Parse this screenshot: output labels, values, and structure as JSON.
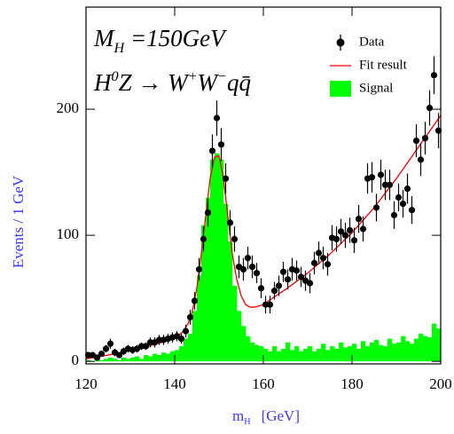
{
  "chart_data": {
    "type": "histogram",
    "xlim": [
      120,
      200
    ],
    "ylim": [
      -2,
      281
    ],
    "xticks": [
      120,
      140,
      160,
      180,
      200
    ],
    "yticks": [
      0,
      100,
      200
    ],
    "ylabel": "Events / 1 GeV",
    "xlabel": [
      {
        "text": "m"
      },
      {
        "text": "H",
        "sub": true
      },
      {
        "text": "[GeV]"
      }
    ],
    "annotations": [
      [
        {
          "text": "M"
        },
        {
          "text": "H",
          "sub": true
        },
        {
          "text": " =150GeV"
        }
      ],
      [
        {
          "text": "H"
        },
        {
          "text": "0",
          "sup": true
        },
        {
          "text": "Z → W"
        },
        {
          "text": "+",
          "sup": true
        },
        {
          "text": "W"
        },
        {
          "text": "−",
          "sup": true
        },
        {
          "text": "qq̄"
        }
      ]
    ],
    "series": [
      {
        "name": "Signal",
        "kind": "bar",
        "color": "#00ff00",
        "bins": [
          120,
          121,
          122,
          123,
          124,
          125,
          126,
          127,
          128,
          129,
          130,
          131,
          132,
          133,
          134,
          135,
          136,
          137,
          138,
          139,
          140,
          141,
          142,
          143,
          144,
          145,
          146,
          147,
          148,
          149,
          150,
          151,
          152,
          153,
          154,
          155,
          156,
          157,
          158,
          159,
          160,
          161,
          162,
          163,
          164,
          165,
          166,
          167,
          168,
          169,
          170,
          171,
          172,
          173,
          174,
          175,
          176,
          177,
          178,
          179,
          180,
          181,
          182,
          183,
          184,
          185,
          186,
          187,
          188,
          189,
          190,
          191,
          192,
          193,
          194,
          195,
          196,
          197,
          198,
          199,
          200
        ],
        "values": [
          1,
          0,
          2,
          1,
          2,
          3,
          2,
          1,
          3,
          2,
          3,
          4,
          2,
          5,
          4,
          6,
          5,
          7,
          6,
          8,
          9,
          12,
          18,
          22,
          40,
          68,
          108,
          130,
          160,
          165,
          160,
          125,
          95,
          60,
          40,
          28,
          20,
          15,
          13,
          12,
          10,
          8,
          12,
          8,
          10,
          15,
          9,
          12,
          8,
          10,
          12,
          8,
          10,
          14,
          9,
          12,
          10,
          15,
          11,
          12,
          14,
          10,
          16,
          12,
          15,
          17,
          13,
          12,
          18,
          14,
          15,
          20,
          16,
          14,
          18,
          22,
          20,
          19,
          30,
          26
        ]
      },
      {
        "name": "Fit result",
        "kind": "line",
        "color": "#ff0000",
        "x": [
          120,
          125,
          130,
          135,
          140,
          142,
          143,
          144,
          145,
          146,
          147,
          148,
          149,
          150,
          151,
          152,
          153,
          154,
          155,
          156,
          157,
          158,
          160,
          162,
          165,
          170,
          175,
          180,
          185,
          190,
          195,
          200
        ],
        "values": [
          2,
          5,
          9,
          13,
          18,
          24,
          30,
          40,
          58,
          85,
          115,
          145,
          162,
          163,
          145,
          115,
          85,
          65,
          52,
          45,
          43,
          43,
          45,
          50,
          57,
          70,
          85,
          102,
          122,
          145,
          170,
          195
        ]
      },
      {
        "name": "Data",
        "kind": "errorbar",
        "color": "#000000",
        "x": [
          120.5,
          121.5,
          122.5,
          123.5,
          124.5,
          125.5,
          126.5,
          127.5,
          128.5,
          129.5,
          130.5,
          131.5,
          132.5,
          133.5,
          134.5,
          135.5,
          136.5,
          137.5,
          138.5,
          139.5,
          140.5,
          141.5,
          142.5,
          143.5,
          144.5,
          145.5,
          146.5,
          147.5,
          148.5,
          149.5,
          150.5,
          151.5,
          152.5,
          153.5,
          154.5,
          155.5,
          156.5,
          157.5,
          158.5,
          159.5,
          160.5,
          161.5,
          162.5,
          163.5,
          164.5,
          165.5,
          166.5,
          167.5,
          168.5,
          169.5,
          170.5,
          171.5,
          172.5,
          173.5,
          174.5,
          175.5,
          176.5,
          177.5,
          178.5,
          179.5,
          180.5,
          181.5,
          182.5,
          183.5,
          184.5,
          185.5,
          186.5,
          187.5,
          188.5,
          189.5,
          190.5,
          191.5,
          192.5,
          193.5,
          194.5,
          195.5,
          196.5,
          197.5,
          198.5,
          199.5
        ],
        "values": [
          5,
          5,
          3,
          6,
          10,
          14,
          7,
          5,
          8,
          10,
          9,
          10,
          12,
          12,
          15,
          15,
          17,
          17,
          18,
          19,
          20,
          18,
          24,
          35,
          48,
          73,
          97,
          118,
          167,
          193,
          172,
          145,
          110,
          97,
          75,
          73,
          82,
          75,
          70,
          58,
          45,
          45,
          56,
          60,
          71,
          65,
          73,
          72,
          67,
          64,
          62,
          78,
          86,
          82,
          77,
          98,
          97,
          103,
          100,
          104,
          96,
          113,
          105,
          145,
          146,
          122,
          148,
          140,
          140,
          116,
          130,
          125,
          137,
          120,
          175,
          160,
          177,
          201,
          227,
          183
        ],
        "errors": [
          2,
          2,
          2,
          2,
          3,
          4,
          3,
          2,
          3,
          3,
          3,
          3,
          3,
          3,
          4,
          4,
          4,
          4,
          4,
          4,
          4,
          4,
          5,
          6,
          7,
          9,
          10,
          11,
          13,
          14,
          13,
          12,
          10,
          10,
          9,
          9,
          9,
          9,
          8,
          8,
          7,
          7,
          7,
          8,
          8,
          8,
          9,
          8,
          8,
          8,
          8,
          9,
          9,
          9,
          9,
          10,
          10,
          10,
          10,
          10,
          10,
          11,
          10,
          12,
          12,
          11,
          12,
          12,
          12,
          11,
          11,
          11,
          12,
          11,
          13,
          13,
          13,
          14,
          15,
          14
        ]
      }
    ]
  }
}
